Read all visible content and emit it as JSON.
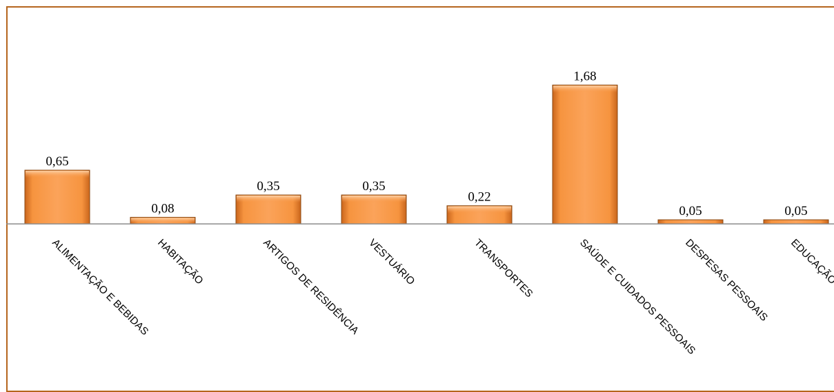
{
  "chart_data": {
    "type": "bar",
    "title": "",
    "xlabel": "",
    "ylabel": "",
    "categories": [
      "ALIMENTAÇÃO E BEBIDAS",
      "HABITAÇÃO",
      "ARTIGOS DE RESIDÊNCIA",
      "VESTUÁRIO",
      "TRANSPORTES",
      "SAÚDE E CUIDADOS PESSOAIS",
      "DESPESAS PESSOAIS",
      "EDUCAÇÃO"
    ],
    "values": [
      0.65,
      0.08,
      0.35,
      0.35,
      0.22,
      1.68,
      0.05,
      0.05
    ],
    "value_labels": [
      "0,65",
      "0,08",
      "0,35",
      "0,35",
      "0,22",
      "1,68",
      "0,05",
      "0,05"
    ],
    "ylim": [
      0,
      2.5
    ],
    "grid": false,
    "legend": "none",
    "colors": {
      "bar_fill": "#f79646",
      "bar_edge": "#8a4a14",
      "frame": "#b5651d",
      "axis": "#8c8c8c"
    }
  }
}
